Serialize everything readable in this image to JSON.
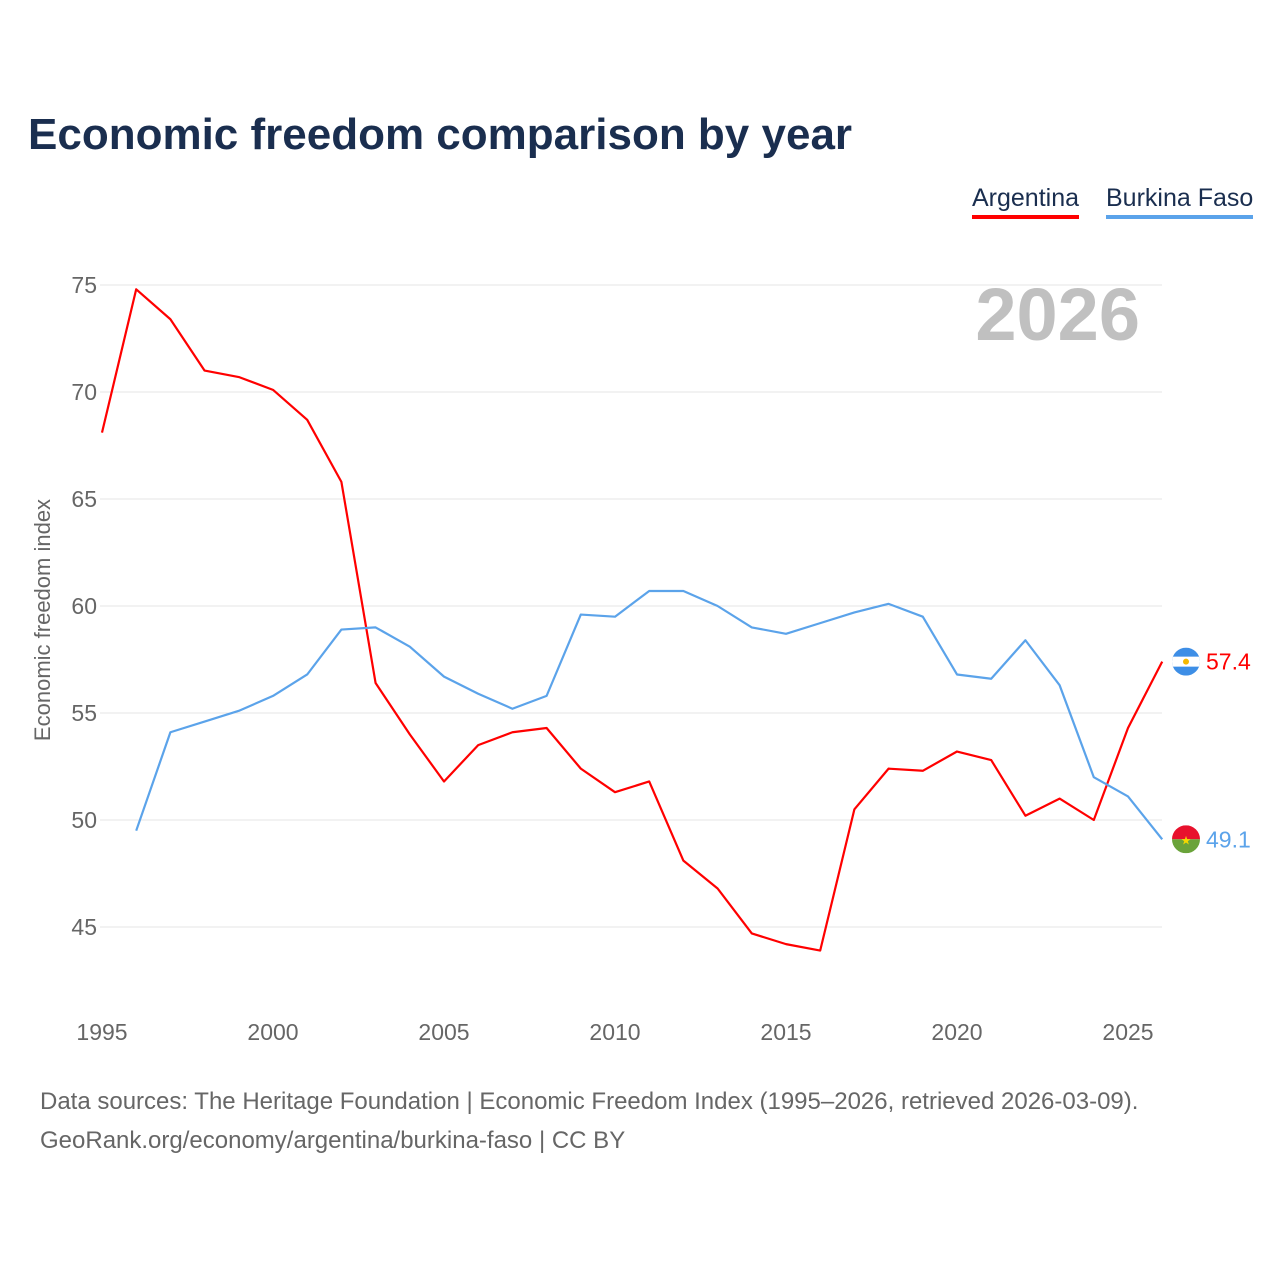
{
  "title": "Economic freedom comparison by year",
  "year_watermark": "2026",
  "footer": {
    "line1": "Data sources: The Heritage Foundation | Economic Freedom Index (1995–2026, retrieved 2026-03-09).",
    "line2": "GeoRank.org/economy/argentina/burkina-faso | CC BY"
  },
  "chart_data": {
    "type": "line",
    "title": "Economic freedom comparison by year",
    "xlabel": "",
    "ylabel": "Economic freedom index",
    "xlim": [
      1995,
      2026
    ],
    "ylim": [
      41.5,
      76
    ],
    "x_ticks": [
      "1995",
      "2000",
      "2005",
      "2010",
      "2015",
      "2020",
      "2025"
    ],
    "y_ticks": [
      "45",
      "50",
      "55",
      "60",
      "65",
      "70",
      "75"
    ],
    "grid": true,
    "legend": "top-right",
    "series": [
      {
        "name": "Argentina",
        "color": "#ff0000",
        "end_label": "57.4",
        "flag": "argentina-flag-icon",
        "x": [
          1995,
          1996,
          1997,
          1998,
          1999,
          2000,
          2001,
          2002,
          2003,
          2004,
          2005,
          2006,
          2007,
          2008,
          2009,
          2010,
          2011,
          2012,
          2013,
          2014,
          2015,
          2016,
          2017,
          2018,
          2019,
          2020,
          2021,
          2022,
          2023,
          2024,
          2025,
          2026
        ],
        "values": [
          68.1,
          74.8,
          73.4,
          71.0,
          70.7,
          70.1,
          68.7,
          65.8,
          56.4,
          54.0,
          51.8,
          53.5,
          54.1,
          54.3,
          52.4,
          51.3,
          51.8,
          48.1,
          46.8,
          44.7,
          44.2,
          43.9,
          50.5,
          52.4,
          52.3,
          53.2,
          52.8,
          50.2,
          51.0,
          50.0,
          54.3,
          57.4
        ]
      },
      {
        "name": "Burkina Faso",
        "color": "#5ba3ea",
        "end_label": "49.1",
        "flag": "burkina-faso-flag-icon",
        "x": [
          1996,
          1997,
          1998,
          1999,
          2000,
          2001,
          2002,
          2003,
          2004,
          2005,
          2006,
          2007,
          2008,
          2009,
          2010,
          2011,
          2012,
          2013,
          2014,
          2015,
          2016,
          2017,
          2018,
          2019,
          2020,
          2021,
          2022,
          2023,
          2024,
          2025,
          2026
        ],
        "values": [
          49.5,
          54.1,
          54.6,
          55.1,
          55.8,
          56.8,
          58.9,
          59.0,
          58.1,
          56.7,
          55.9,
          55.2,
          55.8,
          59.6,
          59.5,
          60.7,
          60.7,
          60.0,
          59.0,
          58.7,
          59.2,
          59.7,
          60.1,
          59.5,
          56.8,
          56.6,
          58.4,
          56.3,
          52.0,
          51.1,
          49.1
        ]
      }
    ]
  }
}
